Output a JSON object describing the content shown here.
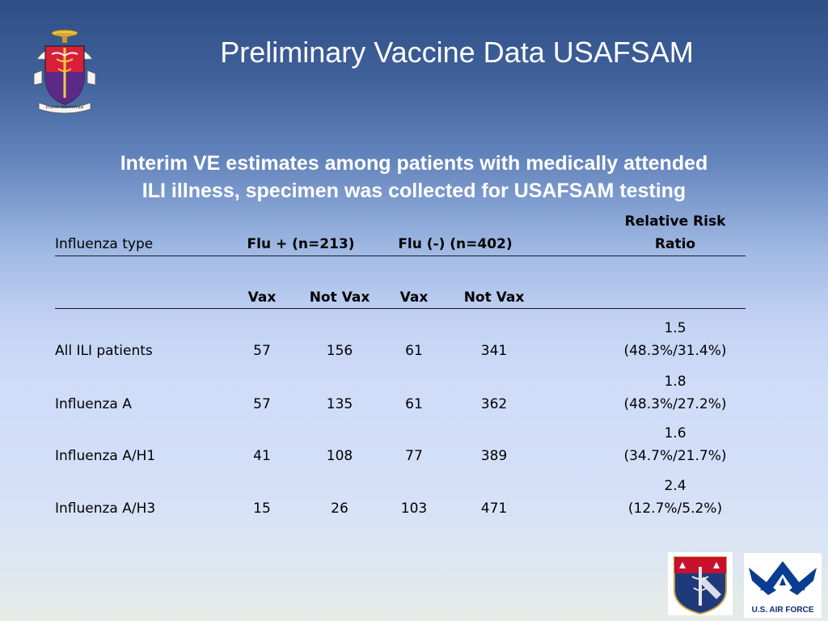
{
  "title": "Preliminary Vaccine Data USAFSAM",
  "subtitle_line1": "Interim VE estimates among patients with medically attended",
  "subtitle_line2": "ILI illness, specimen was collected for USAFSAM testing",
  "table": {
    "header": {
      "influenza_type": "Influenza type",
      "flu_pos": "Flu + (n=213)",
      "flu_neg": "Flu (-)  (n=402)",
      "rr_line1": "Relative Risk",
      "rr_line2": "Ratio"
    },
    "subheader": {
      "vax1": "Vax",
      "notvax1": "Not Vax",
      "vax2": "Vax",
      "notvax2": "Not Vax"
    },
    "rows": [
      {
        "label": "All ILI patients",
        "pos_vax": "57",
        "pos_notvax": "156",
        "neg_vax": "61",
        "neg_notvax": "341",
        "rr": "1.5",
        "rr_pct": "(48.3%/31.4%)"
      },
      {
        "label": "Influenza A",
        "pos_vax": "57",
        "pos_notvax": "135",
        "neg_vax": "61",
        "neg_notvax": "362",
        "rr": "1.8",
        "rr_pct": "(48.3%/27.2%)"
      },
      {
        "label": "Influenza A/H1",
        "pos_vax": "41",
        "pos_notvax": "108",
        "neg_vax": "77",
        "neg_notvax": "389",
        "rr": "1.6",
        "rr_pct": "(34.7%/21.7%)"
      },
      {
        "label": "Influenza A/H3",
        "pos_vax": "15",
        "pos_notvax": "26",
        "neg_vax": "103",
        "neg_notvax": "471",
        "rr": "2.4",
        "rr_pct": "(12.7%/5.2%)"
      }
    ]
  },
  "logos": {
    "left_motto": "Potens Subvenimus",
    "bottom_right_usaf": "U.S. AIR FORCE"
  }
}
